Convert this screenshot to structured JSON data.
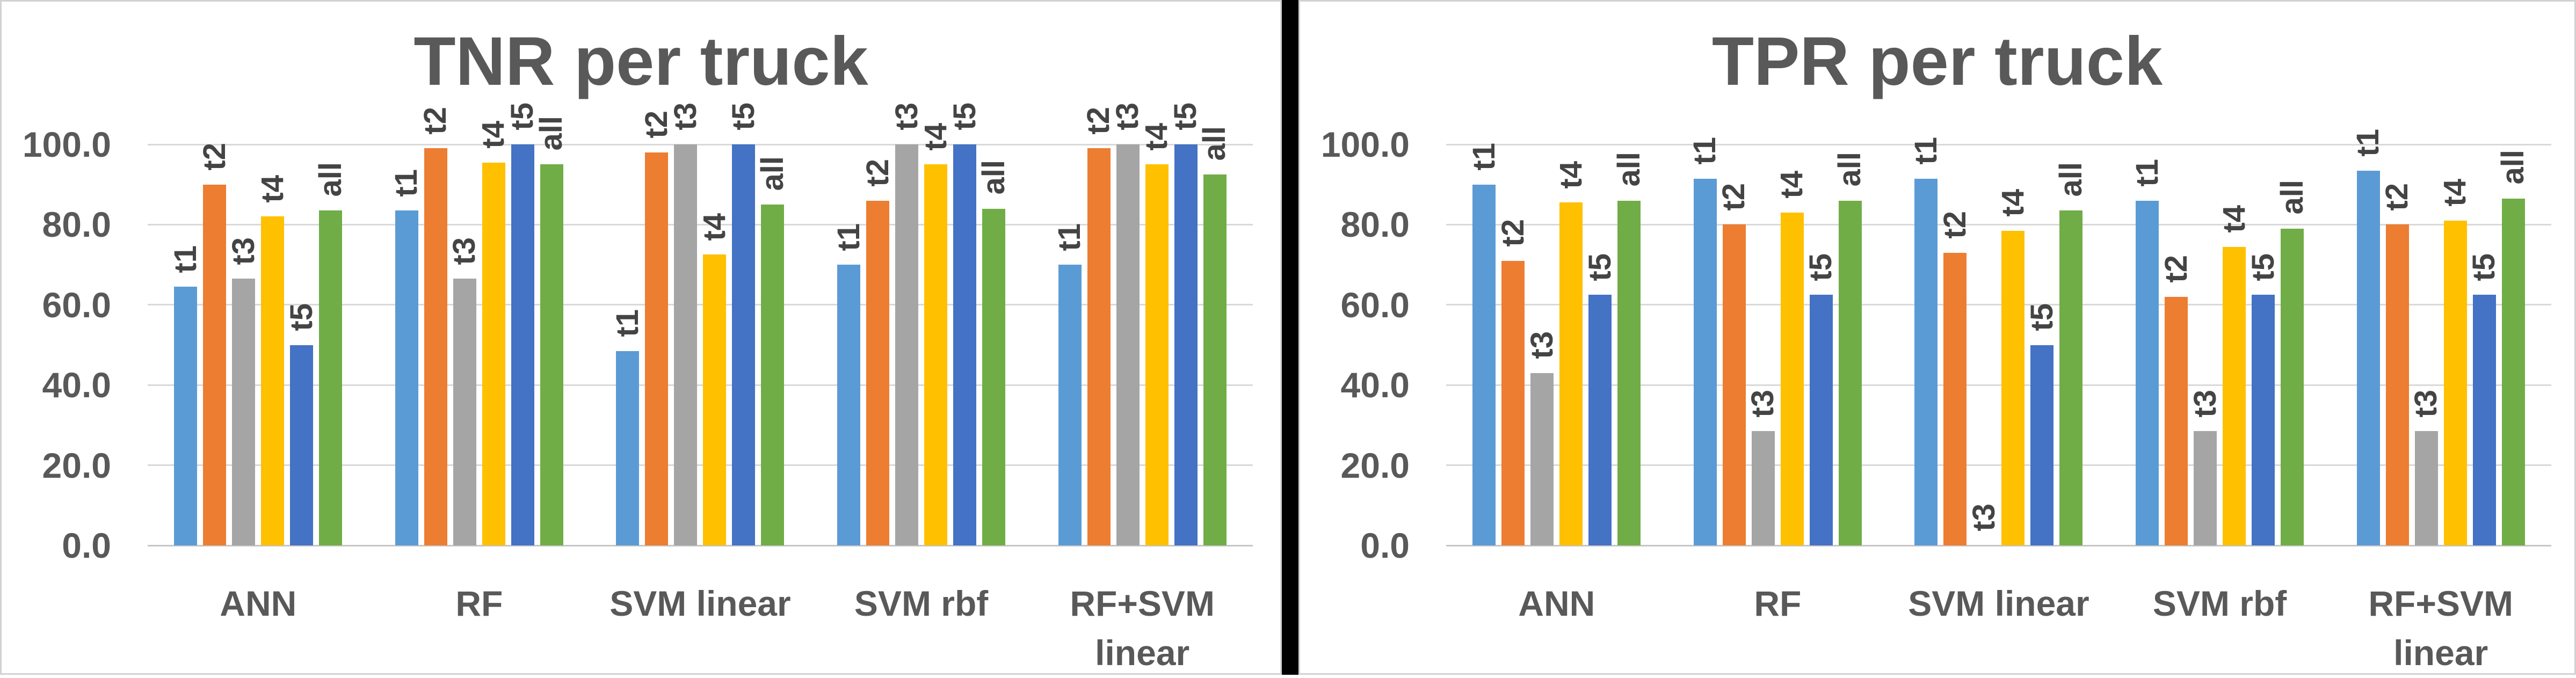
{
  "chart_data": [
    {
      "type": "bar",
      "title": "TNR per truck",
      "categories": [
        "ANN",
        "RF",
        "SVM linear",
        "SVM rbf",
        "RF+SVM linear"
      ],
      "category_lines": [
        [
          "ANN"
        ],
        [
          "RF"
        ],
        [
          "SVM linear"
        ],
        [
          "SVM rbf"
        ],
        [
          "RF+SVM",
          "linear"
        ]
      ],
      "series": [
        {
          "name": "t1",
          "color": "#5B9BD5",
          "values": [
            64.5,
            83.5,
            48.5,
            70,
            70
          ]
        },
        {
          "name": "t2",
          "color": "#ED7D31",
          "values": [
            90,
            99,
            98,
            86,
            99
          ]
        },
        {
          "name": "t3",
          "color": "#A5A5A5",
          "values": [
            66.5,
            66.5,
            100,
            100,
            100
          ]
        },
        {
          "name": "t4",
          "color": "#FFC000",
          "values": [
            82,
            95.5,
            72.5,
            95,
            95
          ]
        },
        {
          "name": "t5",
          "color": "#4472C4",
          "values": [
            50,
            100,
            100,
            100,
            100
          ]
        },
        {
          "name": "all",
          "color": "#70AD47",
          "values": [
            83.5,
            95,
            85,
            84,
            92.5
          ]
        }
      ],
      "ylim": [
        0,
        100
      ],
      "ytick_values": [
        100,
        80,
        60,
        40,
        20,
        0
      ],
      "ytick_labels": [
        "100.0",
        "80.0",
        "60.0",
        "40.0",
        "20.0",
        "0.0"
      ],
      "grid": true,
      "legend": "none",
      "bar_labels": "series name above each bar, rotated 90deg"
    },
    {
      "type": "bar",
      "title": "TPR per truck",
      "categories": [
        "ANN",
        "RF",
        "SVM linear",
        "SVM rbf",
        "RF+SVM linear"
      ],
      "category_lines": [
        [
          "ANN"
        ],
        [
          "RF"
        ],
        [
          "SVM linear"
        ],
        [
          "SVM rbf"
        ],
        [
          "RF+SVM",
          "linear"
        ]
      ],
      "series": [
        {
          "name": "t1",
          "color": "#5B9BD5",
          "values": [
            90,
            91.5,
            91.5,
            86,
            93.5
          ]
        },
        {
          "name": "t2",
          "color": "#ED7D31",
          "values": [
            71,
            80,
            73,
            62,
            80
          ]
        },
        {
          "name": "t3",
          "color": "#A5A5A5",
          "values": [
            43,
            28.5,
            0,
            28.5,
            28.5
          ]
        },
        {
          "name": "t4",
          "color": "#FFC000",
          "values": [
            85.5,
            83,
            78.5,
            74.5,
            81
          ]
        },
        {
          "name": "t5",
          "color": "#4472C4",
          "values": [
            62.5,
            62.5,
            50,
            62.5,
            62.5
          ]
        },
        {
          "name": "all",
          "color": "#70AD47",
          "values": [
            86,
            86,
            83.5,
            79,
            86.5
          ]
        }
      ],
      "ylim": [
        0,
        100
      ],
      "ytick_values": [
        100,
        80,
        60,
        40,
        20,
        0
      ],
      "ytick_labels": [
        "100.0",
        "80.0",
        "60.0",
        "40.0",
        "20.0",
        "0.0"
      ],
      "grid": true,
      "legend": "none",
      "bar_labels": "series name above each bar, rotated 90deg"
    }
  ],
  "layout": {
    "divider_color": "#000000",
    "panel_border_color": "#d2d2d2",
    "gridline_color": "#d9d9d9",
    "text_color": "#595959"
  }
}
